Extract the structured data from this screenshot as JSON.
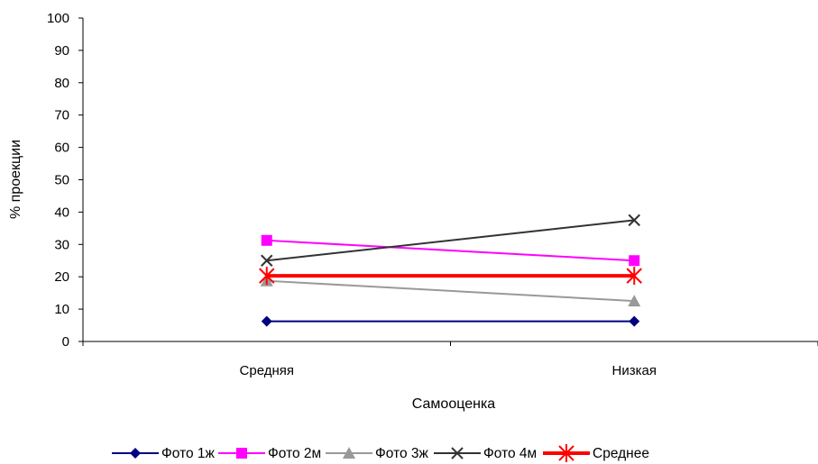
{
  "chart_data": {
    "type": "line",
    "categories": [
      "Средняя",
      "Низкая"
    ],
    "xlabel": "Самооценка",
    "ylabel": "% проекции",
    "ylim": [
      0,
      100
    ],
    "yticks": [
      0,
      10,
      20,
      30,
      40,
      50,
      60,
      70,
      80,
      90,
      100
    ],
    "grid": false,
    "legend_position": "bottom",
    "series": [
      {
        "name": "Фото 1ж",
        "values": [
          6.25,
          6.25
        ],
        "color": "#000080",
        "marker": "diamond",
        "width": 2
      },
      {
        "name": "Фото 2м",
        "values": [
          31.25,
          25
        ],
        "color": "#FF00FF",
        "marker": "square",
        "width": 2
      },
      {
        "name": "Фото 3ж",
        "values": [
          18.75,
          12.5
        ],
        "color": "#999999",
        "marker": "triangle",
        "width": 2
      },
      {
        "name": "Фото 4м",
        "values": [
          25,
          37.5
        ],
        "color": "#333333",
        "marker": "x",
        "width": 2
      },
      {
        "name": "Среднее",
        "values": [
          20.3,
          20.3
        ],
        "color": "#FF0000",
        "marker": "star",
        "width": 4
      }
    ]
  }
}
